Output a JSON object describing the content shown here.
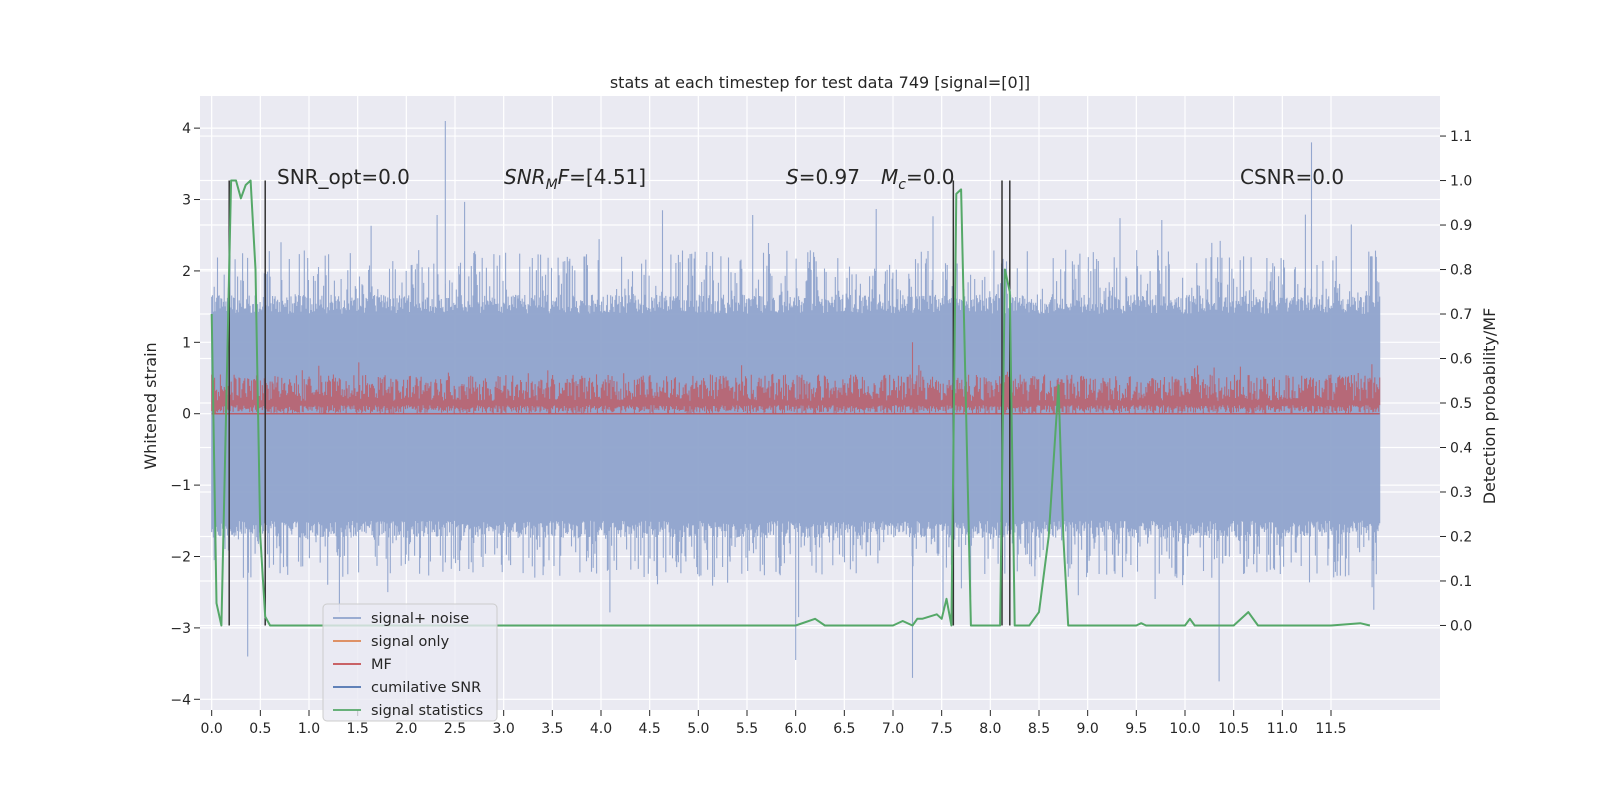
{
  "chart_data": {
    "type": "line",
    "title": "stats at each timestep for test data 749 [signal=[0]]",
    "ylabel": "Whitened strain",
    "y2label": "Detection probability/MF",
    "xlim": [
      -0.12,
      12.62
    ],
    "ylim": [
      -4.15,
      4.45
    ],
    "y2lim": [
      -0.19,
      1.19
    ],
    "grid": true,
    "x_ticks": [
      "0.0",
      "0.5",
      "1.0",
      "1.5",
      "2.0",
      "2.5",
      "3.0",
      "3.5",
      "4.0",
      "4.5",
      "5.0",
      "5.5",
      "6.0",
      "6.5",
      "7.0",
      "7.5",
      "8.0",
      "8.5",
      "9.0",
      "9.5",
      "10.0",
      "10.5",
      "11.0",
      "11.5"
    ],
    "y_ticks": [
      "−4",
      "−3",
      "−2",
      "−1",
      "0",
      "1",
      "2",
      "3",
      "4"
    ],
    "y2_ticks": [
      "0.0",
      "0.1",
      "0.2",
      "0.3",
      "0.4",
      "0.5",
      "0.6",
      "0.7",
      "0.8",
      "0.9",
      "1.0",
      "1.1"
    ],
    "legend_position": "lower-left",
    "legend": [
      {
        "label": "signal+ noise",
        "color": "#8fa3cc"
      },
      {
        "label": "signal only",
        "color": "#dd8452"
      },
      {
        "label": "MF",
        "color": "#c44e52"
      },
      {
        "label": "cumilative SNR",
        "color": "#4c72b0"
      },
      {
        "label": "signal statistics",
        "color": "#55a868"
      }
    ],
    "annotations": [
      {
        "text": "SNR_opt=0.0"
      },
      {
        "text": "SNR_MF=[4.51]"
      },
      {
        "text": "S=0.97"
      },
      {
        "text": "M_c=0.0"
      },
      {
        "text": "CSNR=0.0"
      }
    ],
    "series": [
      {
        "name": "signal+ noise",
        "color": "#8fa3cc",
        "t_range": [
          0.0,
          12.0
        ],
        "envelope": {
          "typical_max": 1.4,
          "typical_min": -1.5,
          "max_peaks": 2.3,
          "min_peaks": -2.3
        },
        "extremes": [
          {
            "x": 2.4,
            "y": 4.1
          },
          {
            "x": 11.3,
            "y": 3.8
          },
          {
            "x": 0.37,
            "y": -3.4
          },
          {
            "x": 10.35,
            "y": -3.75
          },
          {
            "x": 7.2,
            "y": -3.7
          },
          {
            "x": 6.0,
            "y": -3.45
          }
        ]
      },
      {
        "name": "MF",
        "color": "#c44e52",
        "t_range": [
          0.0,
          12.0
        ],
        "typical_max": 0.55,
        "min": 0.0,
        "peak": {
          "x": 7.2,
          "y": 1.0
        }
      },
      {
        "name": "signal statistics",
        "color": "#55a868",
        "axis": "right",
        "x": [
          0.0,
          0.05,
          0.1,
          0.15,
          0.2,
          0.25,
          0.3,
          0.35,
          0.4,
          0.45,
          0.5,
          0.55,
          0.6,
          0.65,
          0.7,
          0.75,
          0.8,
          1.0,
          1.5,
          2.0,
          3.0,
          4.0,
          5.0,
          5.5,
          6.0,
          6.2,
          6.3,
          6.5,
          7.0,
          7.1,
          7.2,
          7.25,
          7.3,
          7.45,
          7.5,
          7.55,
          7.6,
          7.65,
          7.7,
          7.8,
          7.85,
          8.1,
          8.15,
          8.2,
          8.25,
          8.4,
          8.5,
          8.6,
          8.7,
          8.75,
          8.8,
          8.9,
          9.5,
          9.55,
          9.6,
          10.0,
          10.05,
          10.1,
          10.5,
          10.65,
          10.75,
          11.0,
          11.5,
          11.8,
          11.9
        ],
        "y": [
          0.7,
          0.05,
          0.0,
          0.5,
          1.0,
          1.0,
          0.96,
          0.99,
          1.0,
          0.8,
          0.2,
          0.02,
          0.0,
          0.0,
          0.0,
          0.0,
          0.0,
          0.0,
          0.0,
          0.0,
          0.0,
          0.0,
          0.0,
          0.0,
          0.0,
          0.015,
          0.0,
          0.0,
          0.0,
          0.01,
          0.0,
          0.015,
          0.015,
          0.025,
          0.015,
          0.06,
          0.0,
          0.97,
          0.98,
          0.0,
          0.0,
          0.0,
          0.8,
          0.75,
          0.0,
          0.0,
          0.03,
          0.2,
          0.54,
          0.2,
          0.0,
          0.0,
          0.0,
          0.005,
          0.0,
          0.0,
          0.015,
          0.0,
          0.0,
          0.03,
          0.0,
          0.0,
          0.0,
          0.005,
          0.0
        ]
      }
    ],
    "vertical_lines": [
      0.18,
      0.55,
      7.62,
      8.12,
      8.2
    ]
  }
}
